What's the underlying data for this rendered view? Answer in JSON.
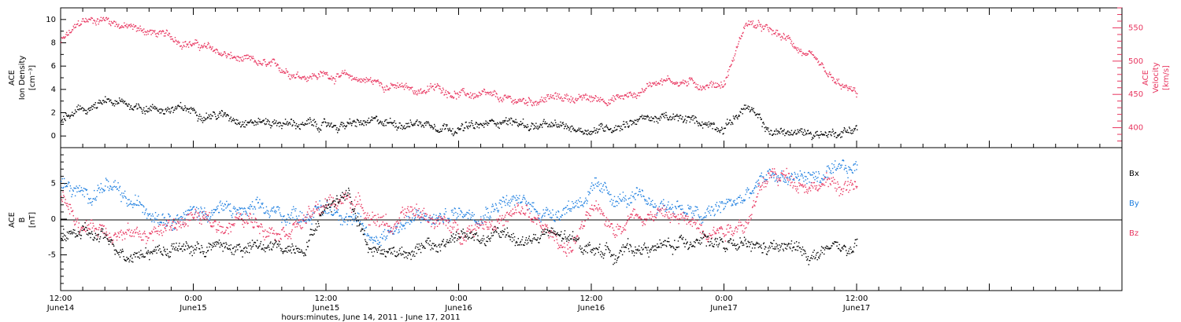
{
  "chart_data": [
    {
      "type": "scatter",
      "panel": "plasma",
      "ylabel_left": [
        "ACE",
        "Ion Density",
        "[cm⁻³]"
      ],
      "ylabel_right": [
        "ACE",
        "Velocity",
        "[km/s]"
      ],
      "ylim_left": [
        -1,
        11
      ],
      "yticks_left": [
        "0",
        "2",
        "4",
        "6",
        "8",
        "10"
      ],
      "ylim_right": [
        370,
        580
      ],
      "yticks_right": [
        "400",
        "450",
        "500",
        "550"
      ],
      "series": [
        {
          "color": "#000000",
          "axis": "left",
          "x": [
            0,
            2,
            4,
            6,
            8,
            10,
            12,
            14,
            16,
            18,
            20,
            22,
            24,
            26,
            28,
            30,
            32,
            34,
            36,
            38,
            40,
            42,
            44,
            46,
            48,
            50,
            52,
            54,
            56,
            58,
            60,
            62,
            64,
            66,
            68,
            70,
            72
          ],
          "values": [
            1.4,
            2.2,
            2.8,
            2.7,
            2.5,
            2.3,
            2.2,
            1.9,
            1.6,
            1.3,
            1.2,
            1.0,
            0.9,
            1.0,
            1.1,
            1.2,
            1.2,
            1.1,
            0.8,
            0.8,
            1.5,
            1.0,
            0.8,
            0.7,
            0.6,
            0.9,
            1.5,
            1.6,
            1.4,
            1.2,
            0.9,
            2.6,
            0.4,
            0.3,
            0.3,
            0.3,
            0.8
          ]
        },
        {
          "color": "#e8355f",
          "axis": "right",
          "x": [
            0,
            2,
            4,
            6,
            8,
            10,
            12,
            14,
            16,
            18,
            20,
            22,
            24,
            26,
            28,
            30,
            32,
            34,
            36,
            38,
            40,
            42,
            44,
            46,
            48,
            50,
            52,
            54,
            56,
            58,
            60,
            62,
            64,
            66,
            68,
            70,
            72
          ],
          "values": [
            530,
            560,
            565,
            552,
            545,
            535,
            527,
            515,
            503,
            495,
            488,
            480,
            481,
            476,
            471,
            463,
            456,
            460,
            452,
            448,
            441,
            440,
            445,
            446,
            443,
            445,
            450,
            475,
            470,
            465,
            468,
            560,
            545,
            530,
            500,
            466,
            450
          ]
        }
      ]
    },
    {
      "type": "scatter",
      "panel": "magnetic-field",
      "ylabel_left": [
        "ACE",
        "B",
        "[nT]"
      ],
      "ylim": [
        -10,
        10
      ],
      "yticks": [
        "-5",
        "0",
        "5"
      ],
      "legend": [
        {
          "label": "Bx",
          "color": "#000000"
        },
        {
          "label": "By",
          "color": "#1e7fe0"
        },
        {
          "label": "Bz",
          "color": "#e8355f"
        }
      ],
      "series": [
        {
          "name": "Bx",
          "color": "#000000",
          "x": [
            0,
            2,
            4,
            6,
            8,
            10,
            12,
            14,
            16,
            18,
            20,
            22,
            24,
            26,
            28,
            30,
            32,
            34,
            36,
            38,
            40,
            42,
            44,
            46,
            48,
            50,
            52,
            54,
            56,
            58,
            60,
            62,
            64,
            66,
            68,
            70,
            72
          ],
          "values": [
            -2,
            -2,
            -3,
            -4.5,
            -4.2,
            -4,
            -4,
            -3.8,
            -4,
            -4,
            -4,
            -3.5,
            2,
            4,
            -4.2,
            -4.5,
            -4,
            -4,
            -2,
            -3,
            -2,
            -3,
            -2,
            -3,
            -4,
            -4.5,
            -4,
            -4,
            -3.5,
            -2,
            -4,
            -4,
            -4.2,
            -4,
            -5,
            -4,
            -4.5
          ]
        },
        {
          "name": "By",
          "color": "#1e7fe0",
          "x": [
            0,
            2,
            4,
            6,
            8,
            10,
            12,
            14,
            16,
            18,
            20,
            22,
            24,
            26,
            28,
            30,
            32,
            34,
            36,
            38,
            40,
            42,
            44,
            46,
            48,
            50,
            52,
            54,
            56,
            58,
            60,
            62,
            64,
            66,
            68,
            70,
            72
          ],
          "values": [
            5,
            3,
            5,
            2,
            1.5,
            1,
            1,
            1.5,
            1,
            1,
            0.5,
            1,
            1.5,
            1,
            -3,
            -1,
            0,
            0,
            1,
            1.5,
            3,
            2,
            1,
            2,
            4,
            3,
            2.5,
            2,
            2,
            0,
            2,
            3,
            6,
            6,
            6,
            6,
            7
          ]
        },
        {
          "name": "Bz",
          "color": "#e8355f",
          "x": [
            0,
            2,
            4,
            6,
            8,
            10,
            12,
            14,
            16,
            18,
            20,
            22,
            24,
            26,
            28,
            30,
            32,
            34,
            36,
            38,
            40,
            42,
            44,
            46,
            48,
            50,
            52,
            54,
            56,
            58,
            60,
            62,
            64,
            66,
            68,
            70,
            72
          ],
          "values": [
            4,
            -1,
            -1,
            -2,
            -2,
            -1,
            0.5,
            -1,
            0,
            -0.5,
            -1,
            0,
            2,
            3,
            1,
            -1,
            1,
            0,
            -2,
            0,
            0,
            1,
            -2,
            -4,
            1,
            -1,
            1,
            1,
            0,
            -1,
            -1,
            0,
            6,
            6,
            5,
            5,
            4
          ]
        }
      ]
    }
  ],
  "x_axis": {
    "xlim": [
      0,
      96
    ],
    "major_ticks": [
      0,
      12,
      24,
      36,
      48,
      60,
      72,
      84
    ],
    "labels": [
      {
        "time": "12:00",
        "date": "June14"
      },
      {
        "time": "0:00",
        "date": "June15"
      },
      {
        "time": "12:00",
        "date": "June15"
      },
      {
        "time": "0:00",
        "date": "June16"
      },
      {
        "time": "12:00",
        "date": "June16"
      },
      {
        "time": "0:00",
        "date": "June17"
      },
      {
        "time": "12:00",
        "date": "June17"
      }
    ],
    "title": "hours:minutes, June 14, 2011 - June 17, 2011"
  }
}
